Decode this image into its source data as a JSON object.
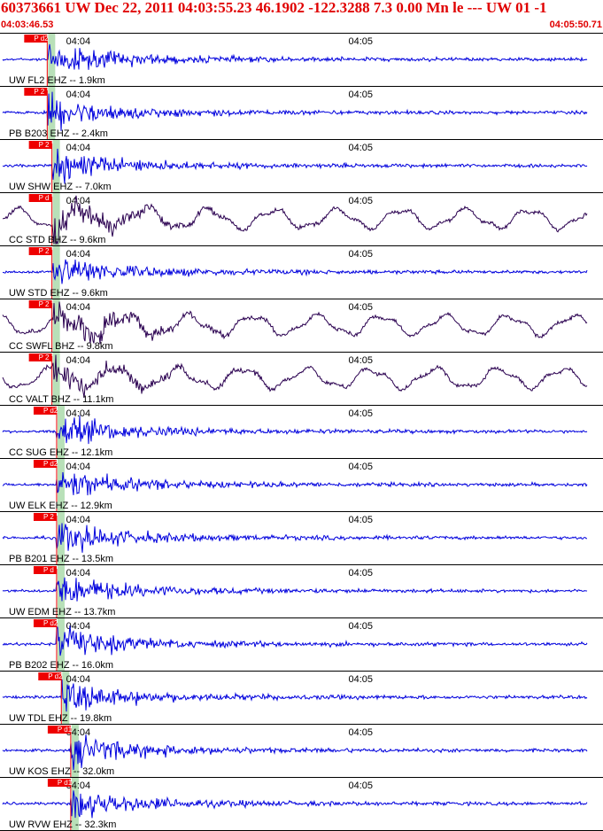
{
  "header": {
    "title": "60373661 UW Dec 22, 2011 04:03:55.23   46.1902 -122.3288  7.3 0.00 Mn le --- UW 01   -1",
    "time_start": "04:03:46.53",
    "time_end": "04:05:50.71"
  },
  "colors": {
    "header_text": "#e00000",
    "ehz_trace": "#0000dd",
    "bhz_trace": "#2a0050",
    "pick_box": "#ee0000",
    "pick_window": "#b8e0b8"
  },
  "chart_data": {
    "type": "line",
    "title": "60373661 UW Dec 22, 2011 04:03:55.23   46.1902 -122.3288  7.3 0.00 Mn le --- UW 01   -1",
    "x_range": [
      "04:03:46.53",
      "04:05:50.71"
    ],
    "x_ticks": [
      "04:04",
      "04:05"
    ],
    "series": [
      {
        "name": "UW FL2 EHZ -- 1.9km",
        "channel": "EHZ",
        "pick_label": "P d2",
        "pick_time": "04:03:56"
      },
      {
        "name": "PB B203 EHZ -- 2.4km",
        "channel": "EHZ",
        "pick_label": "P 2",
        "pick_time": "04:03:56"
      },
      {
        "name": "UW SHW EHZ -- 7.0km",
        "channel": "EHZ",
        "pick_label": "P 2",
        "pick_time": "04:03:57"
      },
      {
        "name": "CC STD BHZ -- 9.6km",
        "channel": "BHZ",
        "pick_label": "P d",
        "pick_time": "04:03:57"
      },
      {
        "name": "UW STD EHZ -- 9.6km",
        "channel": "EHZ",
        "pick_label": "P 2",
        "pick_time": "04:03:57"
      },
      {
        "name": "CC SWFL BHZ -- 9.8km",
        "channel": "BHZ",
        "pick_label": "P 2",
        "pick_time": "04:03:57"
      },
      {
        "name": "CC VALT BHZ -- 11.1km",
        "channel": "BHZ",
        "pick_label": "P 2",
        "pick_time": "04:03:57"
      },
      {
        "name": "CC SUG EHZ -- 12.1km",
        "channel": "EHZ",
        "pick_label": "P d2",
        "pick_time": "04:03:58"
      },
      {
        "name": "UW ELK EHZ -- 12.9km",
        "channel": "EHZ",
        "pick_label": "P d2",
        "pick_time": "04:03:58"
      },
      {
        "name": "PB B201 EHZ -- 13.5km",
        "channel": "EHZ",
        "pick_label": "P 2",
        "pick_time": "04:03:58"
      },
      {
        "name": "UW EDM EHZ -- 13.7km",
        "channel": "EHZ",
        "pick_label": "P d",
        "pick_time": "04:03:58"
      },
      {
        "name": "PB B202 EHZ -- 16.0km",
        "channel": "EHZ",
        "pick_label": "P d2",
        "pick_time": "04:03:58"
      },
      {
        "name": "UW TDL EHZ -- 19.8km",
        "channel": "EHZ",
        "pick_label": "P d2",
        "pick_time": "04:03:59"
      },
      {
        "name": "UW KOS EHZ -- 32.0km",
        "channel": "EHZ",
        "pick_label": "P d1",
        "pick_time": "04:04:01"
      },
      {
        "name": "UW RVW EHZ -- 32.3km",
        "channel": "EHZ",
        "pick_label": "P d1",
        "pick_time": "04:04:01"
      }
    ],
    "grid": false,
    "legend": "none"
  }
}
